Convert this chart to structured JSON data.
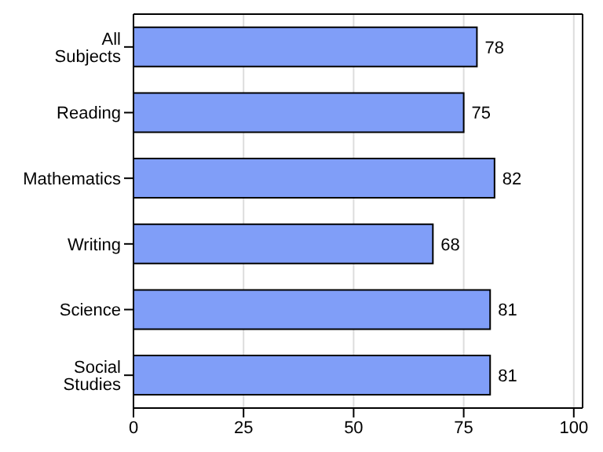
{
  "chart_data": {
    "type": "bar",
    "orientation": "horizontal",
    "categories": [
      "All Subjects",
      "Reading",
      "Mathematics",
      "Writing",
      "Science",
      "Social Studies"
    ],
    "values": [
      78,
      75,
      82,
      68,
      81,
      81
    ],
    "color": "#809ef8",
    "xlim": [
      0,
      102
    ],
    "xticks": [
      0,
      25,
      50,
      75,
      100
    ],
    "grid": "x",
    "data_labels": true
  }
}
